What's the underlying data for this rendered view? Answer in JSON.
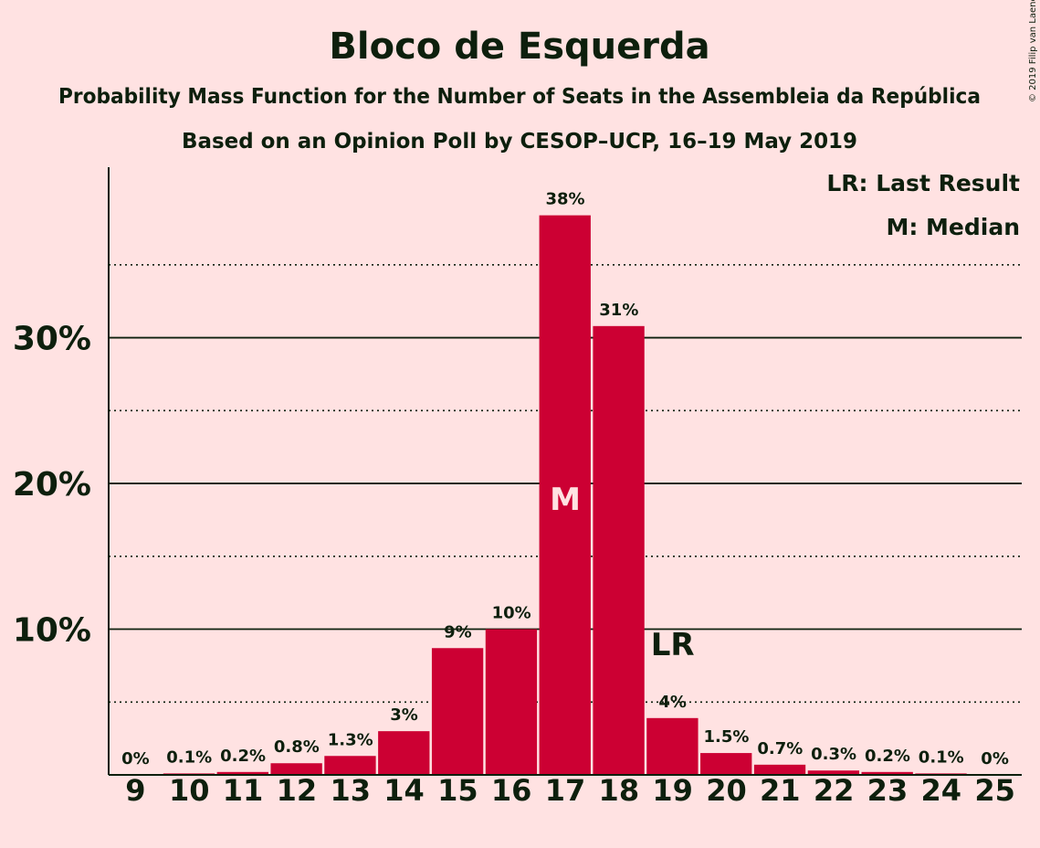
{
  "copyright": "© 2019 Filip van Laenen",
  "chart_data": {
    "type": "bar",
    "title": "Bloco de Esquerda",
    "subtitle": "Probability Mass Function for the Number of Seats in the Assembleia da República",
    "subtitle2": "Based on an Opinion Poll by CESOP–UCP, 16–19 May 2019",
    "xlabel": "",
    "ylabel": "",
    "ylim": [
      0,
      41.7
    ],
    "ytick_labels": [
      "10%",
      "20%",
      "30%"
    ],
    "yticks_major": [
      10,
      20,
      30
    ],
    "yticks_minor": [
      5,
      15,
      25,
      35
    ],
    "categories": [
      "9",
      "10",
      "11",
      "12",
      "13",
      "14",
      "15",
      "16",
      "17",
      "18",
      "19",
      "20",
      "21",
      "22",
      "23",
      "24",
      "25"
    ],
    "values": [
      0,
      0.1,
      0.2,
      0.8,
      1.3,
      3,
      8.7,
      10,
      38.4,
      30.8,
      3.9,
      1.5,
      0.7,
      0.3,
      0.2,
      0.1,
      0
    ],
    "value_labels": [
      "0%",
      "0.1%",
      "0.2%",
      "0.8%",
      "1.3%",
      "3%",
      "9%",
      "10%",
      "38%",
      "31%",
      "4%",
      "1.5%",
      "0.7%",
      "0.3%",
      "0.2%",
      "0.1%",
      "0%"
    ],
    "median_seat": "17",
    "median_marker": "M",
    "last_result_seat": "19",
    "last_result_marker": "LR",
    "legend": [
      "LR: Last Result",
      "M: Median"
    ],
    "legend_position": "top-right",
    "grid": true,
    "colors": {
      "bar": "#cc0033",
      "background": "#ffe2e2",
      "text": "#0d1f0d",
      "median_text": "#ffe2e2"
    }
  }
}
